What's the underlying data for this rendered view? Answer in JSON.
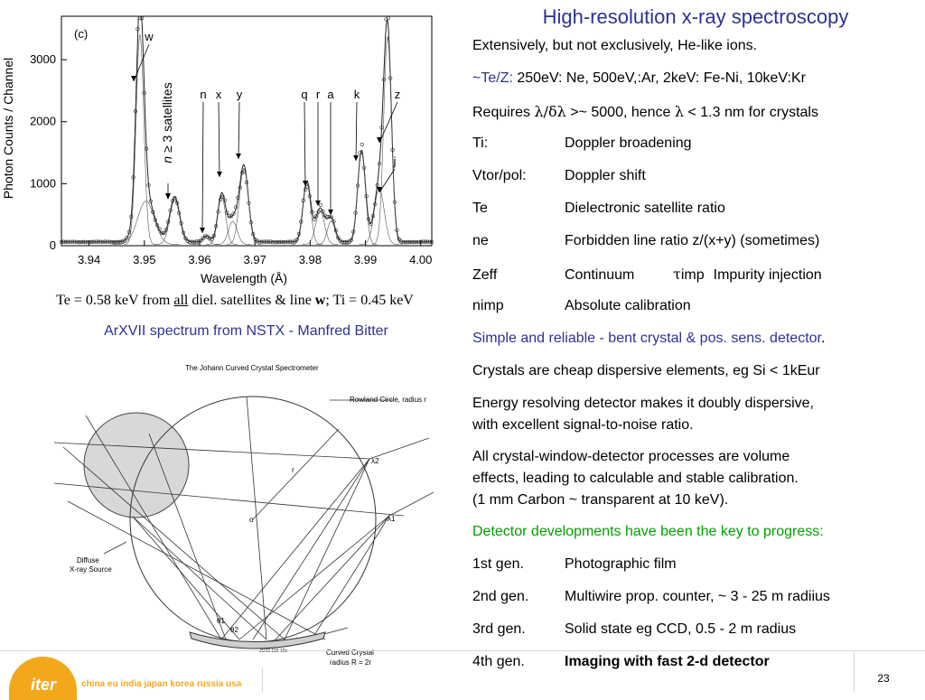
{
  "title": "High-resolution x-ray spectroscopy",
  "right_lines": [
    {
      "k": "",
      "v": "Extensively, but not exclusively, He-like ions."
    },
    {
      "k": "",
      "v": ""
    },
    {
      "k": "",
      "v": ""
    },
    {
      "k": "Ti:",
      "v": "Doppler broadening"
    },
    {
      "k": "Vtor/pol:",
      "v": "Doppler shift"
    },
    {
      "k": "Te",
      "v": "Dielectronic satellite ratio"
    },
    {
      "k": "ne",
      "v": "Forbidden line ratio z/(x+y) (sometimes)"
    },
    {
      "k": "Zeff",
      "v": ""
    },
    {
      "k": "nimp",
      "v": "Absolute calibration"
    }
  ],
  "te_z_line": {
    "label": "~Te/Z:",
    "text": " 250eV: Ne,  500eV,:Ar,   2keV: Fe-Ni,  10keV:Kr"
  },
  "requires_line": {
    "a": "Requires ",
    "b": "λ/δλ",
    "c": "  >~ 5000, hence ",
    "d": "λ",
    "e": " < 1.3 nm for crystals"
  },
  "zeff_line": {
    "v1": "Continuum",
    "tau": "τ",
    "v2": "imp",
    "v3": "Impurity injection"
  },
  "simple_line": {
    "blue": "Simple and reliable - bent crystal & pos. sens. detector",
    "black": "."
  },
  "crystals_line": "Crystals are cheap dispersive elements, eg Si  < 1kEur",
  "energy_lines": [
    "Energy resolving detector makes it doubly dispersive,",
    "with excellent signal-to-noise ratio."
  ],
  "volume_lines": [
    "All crystal-window-detector processes are volume",
    "effects, leading to calculable and stable calibration.",
    "(1 mm Carbon ~ transparent at 10 keV)."
  ],
  "detector_heading": "Detector developments have been the key to progress:",
  "generations": [
    {
      "k": "1st gen.",
      "v": "Photographic film"
    },
    {
      "k": "2nd gen.",
      "v": "Multiwire prop. counter, ~ 3 - 25 m radiius"
    },
    {
      "k": "3rd gen.",
      "v": "Solid state eg CCD, 0.5 - 2 m radius"
    },
    {
      "k": "4th gen.",
      "v": "Imaging with fast 2-d detector"
    }
  ],
  "caption1": {
    "a": "Te = 0.58 keV from ",
    "u": "all",
    "b": " diel. satellites & line ",
    "w": "w",
    "c": "; Ti = 0.45 keV"
  },
  "caption2": "ArXVII spectrum from NSTX - Manfred Bitter",
  "chart_data": {
    "type": "line",
    "panel_label": "(c)",
    "xlabel": "Wavelength (Å)",
    "ylabel": "Photon Counts / Channel",
    "xlim": [
      3.935,
      4.002
    ],
    "ylim": [
      0,
      3700
    ],
    "xticks": [
      "3.94",
      "3.95",
      "3.96",
      "3.97",
      "3.98",
      "3.99",
      "4.00"
    ],
    "yticks": [
      "0",
      "1000",
      "2000",
      "3000"
    ],
    "line_labels": [
      "w",
      "n",
      "x",
      "y",
      "q",
      "r",
      "a",
      "k",
      "z",
      "j"
    ],
    "satellite_label": "n ≥ 3 satellites",
    "n_sym": "n",
    "sat_rest": " ≥ 3 satellites",
    "peaks": [
      {
        "x": 3.9492,
        "y": 3380,
        "w": 0.0007
      },
      {
        "x": 3.9503,
        "y": 700,
        "w": 0.0015
      },
      {
        "x": 3.9555,
        "y": 720,
        "w": 0.0009
      },
      {
        "x": 3.9612,
        "y": 100,
        "w": 0.0006
      },
      {
        "x": 3.964,
        "y": 780,
        "w": 0.0007
      },
      {
        "x": 3.966,
        "y": 370,
        "w": 0.0008
      },
      {
        "x": 3.968,
        "y": 1230,
        "w": 0.0008
      },
      {
        "x": 3.9794,
        "y": 980,
        "w": 0.0007
      },
      {
        "x": 3.9818,
        "y": 540,
        "w": 0.0008
      },
      {
        "x": 3.9838,
        "y": 380,
        "w": 0.0007
      },
      {
        "x": 3.9893,
        "y": 1480,
        "w": 0.0007
      },
      {
        "x": 3.9925,
        "y": 900,
        "w": 0.0009
      },
      {
        "x": 3.994,
        "y": 3350,
        "w": 0.0007
      }
    ],
    "baseline": 60
  },
  "diagram": {
    "title": "The Johann Curved Crystal Spectrometer",
    "rowland": "Rowland Circle, radius r",
    "r": "r",
    "o": "o",
    "lambda2": "λ2",
    "lambda1": "λ1",
    "source1": "Diffuse",
    "source2": "X-ray Source",
    "theta1": "θ1",
    "theta2": "θ2",
    "crystal1": "Curved Crystal",
    "crystal2": "radius R = 2r",
    "code": "JG02.113-10c"
  },
  "footer": {
    "logo": "iter",
    "countries": "china eu india japan korea russia usa",
    "page": "23"
  }
}
